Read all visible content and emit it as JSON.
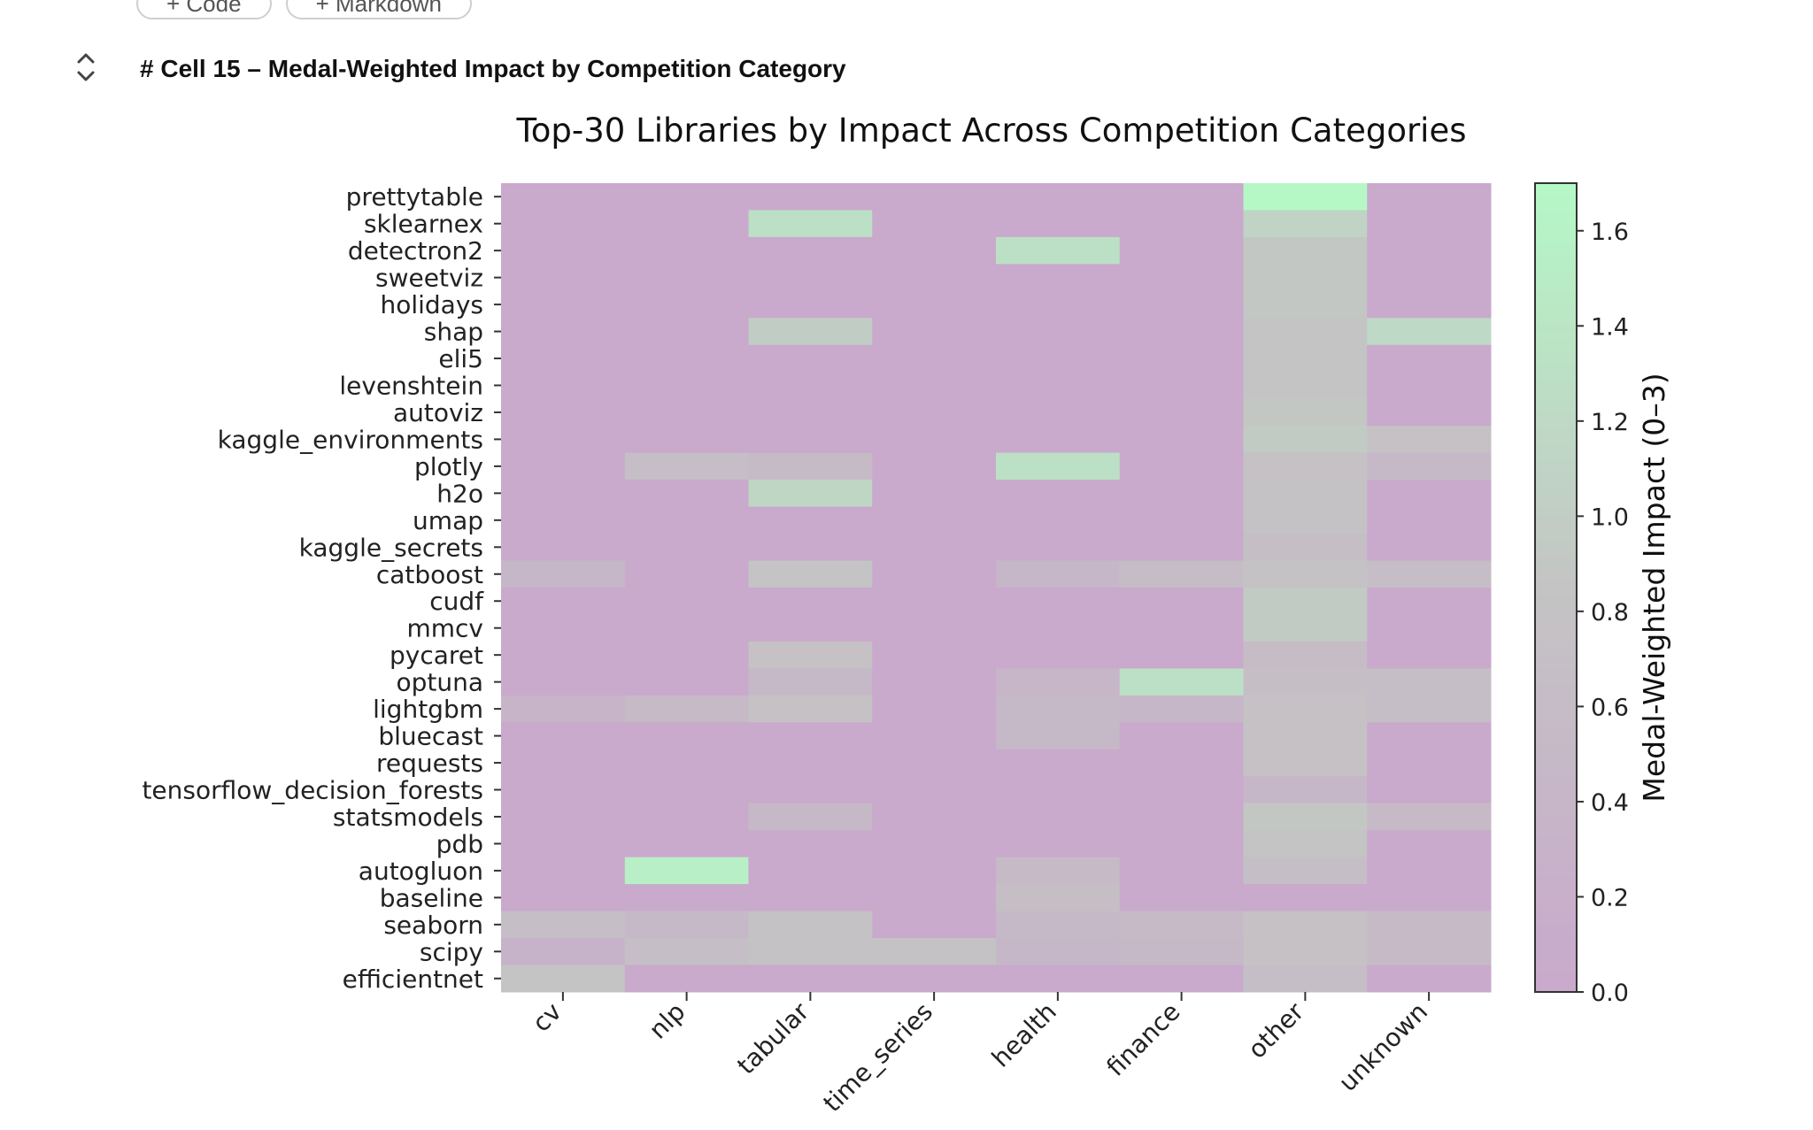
{
  "toolbar": {
    "code_label": "+ Code",
    "markdown_label": "+ Markdown"
  },
  "cell": {
    "title": "# Cell 15 – Medal-Weighted Impact by Competition Category"
  },
  "icons": {
    "collapse": "collapse-expand-icon"
  },
  "colors": {
    "low": "#c9a9cc",
    "mid": "#c4c4c4",
    "high": "#b5f8c6"
  },
  "chart_data": {
    "type": "heatmap",
    "title": "Top-30 Libraries by Impact Across Competition Categories",
    "xlabel": "",
    "ylabel": "",
    "x_categories": [
      "cv",
      "nlp",
      "tabular",
      "time_series",
      "health",
      "finance",
      "other",
      "unknown"
    ],
    "y_categories": [
      "prettytable",
      "sklearnex",
      "detectron2",
      "sweetviz",
      "holidays",
      "shap",
      "eli5",
      "levenshtein",
      "autoviz",
      "kaggle_environments",
      "plotly",
      "h2o",
      "umap",
      "kaggle_secrets",
      "catboost",
      "cudf",
      "mmcv",
      "pycaret",
      "optuna",
      "lightgbm",
      "bluecast",
      "requests",
      "tensorflow_decision_forests",
      "statsmodels",
      "pdb",
      "autogluon",
      "baseline",
      "seaborn",
      "scipy",
      "efficientnet"
    ],
    "values": [
      [
        0,
        0,
        0,
        0,
        0,
        0,
        1.7,
        0
      ],
      [
        0,
        0,
        1.3,
        0,
        0,
        0,
        1.1,
        0
      ],
      [
        0,
        0,
        0,
        0,
        1.3,
        0,
        0.9,
        0
      ],
      [
        0,
        0,
        0,
        0,
        0,
        0,
        0.9,
        0
      ],
      [
        0,
        0,
        0,
        0,
        0,
        0,
        0.9,
        0
      ],
      [
        0,
        0,
        1.0,
        0,
        0,
        0,
        0.85,
        1.2
      ],
      [
        0,
        0,
        0,
        0,
        0,
        0,
        0.85,
        0
      ],
      [
        0,
        0,
        0,
        0,
        0,
        0,
        0.85,
        0
      ],
      [
        0,
        0,
        0,
        0,
        0,
        0,
        0.9,
        0
      ],
      [
        0,
        0,
        0,
        0,
        0,
        0,
        0.95,
        0.75
      ],
      [
        0,
        0.65,
        0.55,
        0,
        1.3,
        0,
        0.75,
        0.5
      ],
      [
        0,
        0,
        1.15,
        0,
        0,
        0,
        0.8,
        0
      ],
      [
        0,
        0,
        0,
        0,
        0,
        0,
        0.8,
        0
      ],
      [
        0,
        0,
        0,
        0,
        0,
        0,
        0.7,
        0
      ],
      [
        0.45,
        0,
        0.85,
        0,
        0.45,
        0.6,
        0.8,
        0.65
      ],
      [
        0,
        0,
        0,
        0,
        0,
        0,
        0.95,
        0
      ],
      [
        0,
        0,
        0,
        0,
        0,
        0,
        0.95,
        0
      ],
      [
        0,
        0,
        0.75,
        0,
        0,
        0,
        0.6,
        0
      ],
      [
        0,
        0,
        0.5,
        0,
        0.4,
        1.3,
        0.7,
        0.65
      ],
      [
        0.35,
        0.55,
        0.75,
        0,
        0.5,
        0.45,
        0.75,
        0.65
      ],
      [
        0,
        0,
        0,
        0,
        0.5,
        0,
        0.75,
        0
      ],
      [
        0,
        0,
        0,
        0,
        0,
        0,
        0.75,
        0
      ],
      [
        0,
        0,
        0,
        0,
        0,
        0,
        0.45,
        0
      ],
      [
        0,
        0,
        0.5,
        0,
        0,
        0,
        0.9,
        0.55
      ],
      [
        0,
        0,
        0,
        0,
        0,
        0,
        0.85,
        0
      ],
      [
        0,
        1.55,
        0,
        0,
        0.55,
        0,
        0.65,
        0
      ],
      [
        0,
        0,
        0,
        0,
        0.7,
        0,
        0,
        0
      ],
      [
        0.65,
        0.5,
        0.8,
        0,
        0.5,
        0.55,
        0.75,
        0.55
      ],
      [
        0.3,
        0.65,
        0.8,
        0.8,
        0.45,
        0.5,
        0.75,
        0.55
      ],
      [
        0.85,
        0,
        0,
        0,
        0,
        0,
        0.65,
        0
      ]
    ],
    "colorbar": {
      "label": "Medal-Weighted Impact (0–3)",
      "min": 0,
      "max": 1.7,
      "ticks": [
        "0.0",
        "0.2",
        "0.4",
        "0.6",
        "0.8",
        "1.0",
        "1.2",
        "1.4",
        "1.6"
      ]
    }
  }
}
